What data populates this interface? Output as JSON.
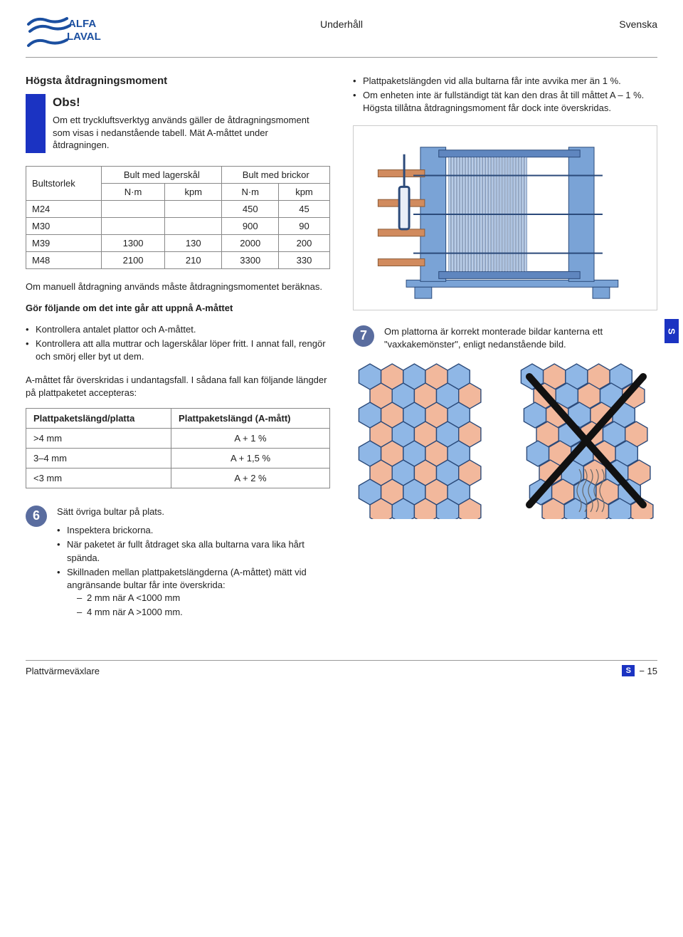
{
  "header": {
    "center": "Underhåll",
    "right": "Svenska"
  },
  "left": {
    "title": "Högsta åtdragningsmoment",
    "obs": {
      "heading": "Obs!",
      "text": "Om ett tryckluftsverktyg används gäller de åtdragningsmoment som visas i nedanstående tabell. Mät A-måttet under åtdragningen."
    },
    "torque_table": {
      "h_bolt": "Bultstorlek",
      "h_lager": "Bult med lagerskål",
      "h_brickor": "Bult med brickor",
      "u_nm": "N·m",
      "u_kpm": "kpm",
      "rows": [
        {
          "size": "M24",
          "a": "",
          "b": "",
          "c": "450",
          "d": "45"
        },
        {
          "size": "M30",
          "a": "",
          "b": "",
          "c": "900",
          "d": "90"
        },
        {
          "size": "M39",
          "a": "1300",
          "b": "130",
          "c": "2000",
          "d": "200"
        },
        {
          "size": "M48",
          "a": "2100",
          "b": "210",
          "c": "3300",
          "d": "330"
        }
      ]
    },
    "manual_note": "Om manuell åtdragning används måste åtdragningsmomentet beräknas.",
    "cannot_title": "Gör följande om det inte går att uppnå A-måttet",
    "cannot_items": [
      "Kontrollera antalet plattor och A-måttet.",
      "Kontrollera att alla muttrar och lagerskålar löper fritt. I annat fall, rengör och smörj eller byt ut dem."
    ],
    "exceed_note": "A-måttet får överskridas i undantagsfall. I sådana fall kan följande längder på plattpaketet accepteras:",
    "len_table": {
      "h1": "Plattpaketslängd/platta",
      "h2": "Plattpaketslängd (A-mått)",
      "rows": [
        {
          "a": ">4 mm",
          "b": "A + 1 %"
        },
        {
          "a": "3–4 mm",
          "b": "A + 1,5 %"
        },
        {
          "a": "<3 mm",
          "b": "A + 2 %"
        }
      ]
    },
    "step6": {
      "num": "6",
      "lead": "Sätt övriga bultar på plats.",
      "items": [
        "Inspektera brickorna.",
        "När paketet är fullt åtdraget ska alla bultarna vara lika hårt spända.",
        "Skillnaden mellan plattpaketslängderna (A-måttet) mätt vid angränsande bultar får inte överskrida:"
      ],
      "sub": [
        "2 mm när A <1000 mm",
        "4 mm när A >1000 mm."
      ]
    }
  },
  "right": {
    "top_bullets": [
      "Plattpaketslängden vid alla bultarna får inte avvika mer än 1 %.",
      "Om enheten inte är fullständigt tät kan den dras åt till måttet A – 1 %. Högsta tillåtna åtdragningsmoment får dock inte överskridas."
    ],
    "step7": {
      "num": "7",
      "text": "Om plattorna är korrekt monterade bildar kanterna ett \"vaxkakemönster\", enligt nedanstående bild."
    },
    "side_tab": "S",
    "honeycomb": {
      "good_colors": [
        "#8fb7e6",
        "#f2b89c"
      ],
      "bad_colors": [
        "#8fb7e6",
        "#f2b89c"
      ],
      "stroke": "#2b4a7a",
      "x_color": "#111"
    }
  },
  "footer": {
    "left": "Plattvärmeväxlare",
    "badge": "S",
    "page": "− 15"
  },
  "phe": {
    "frame_color": "#7aa3d6",
    "plate_color": "#b9cde8",
    "pipe_color": "#d18b5e",
    "outline": "#2b4a7a"
  }
}
